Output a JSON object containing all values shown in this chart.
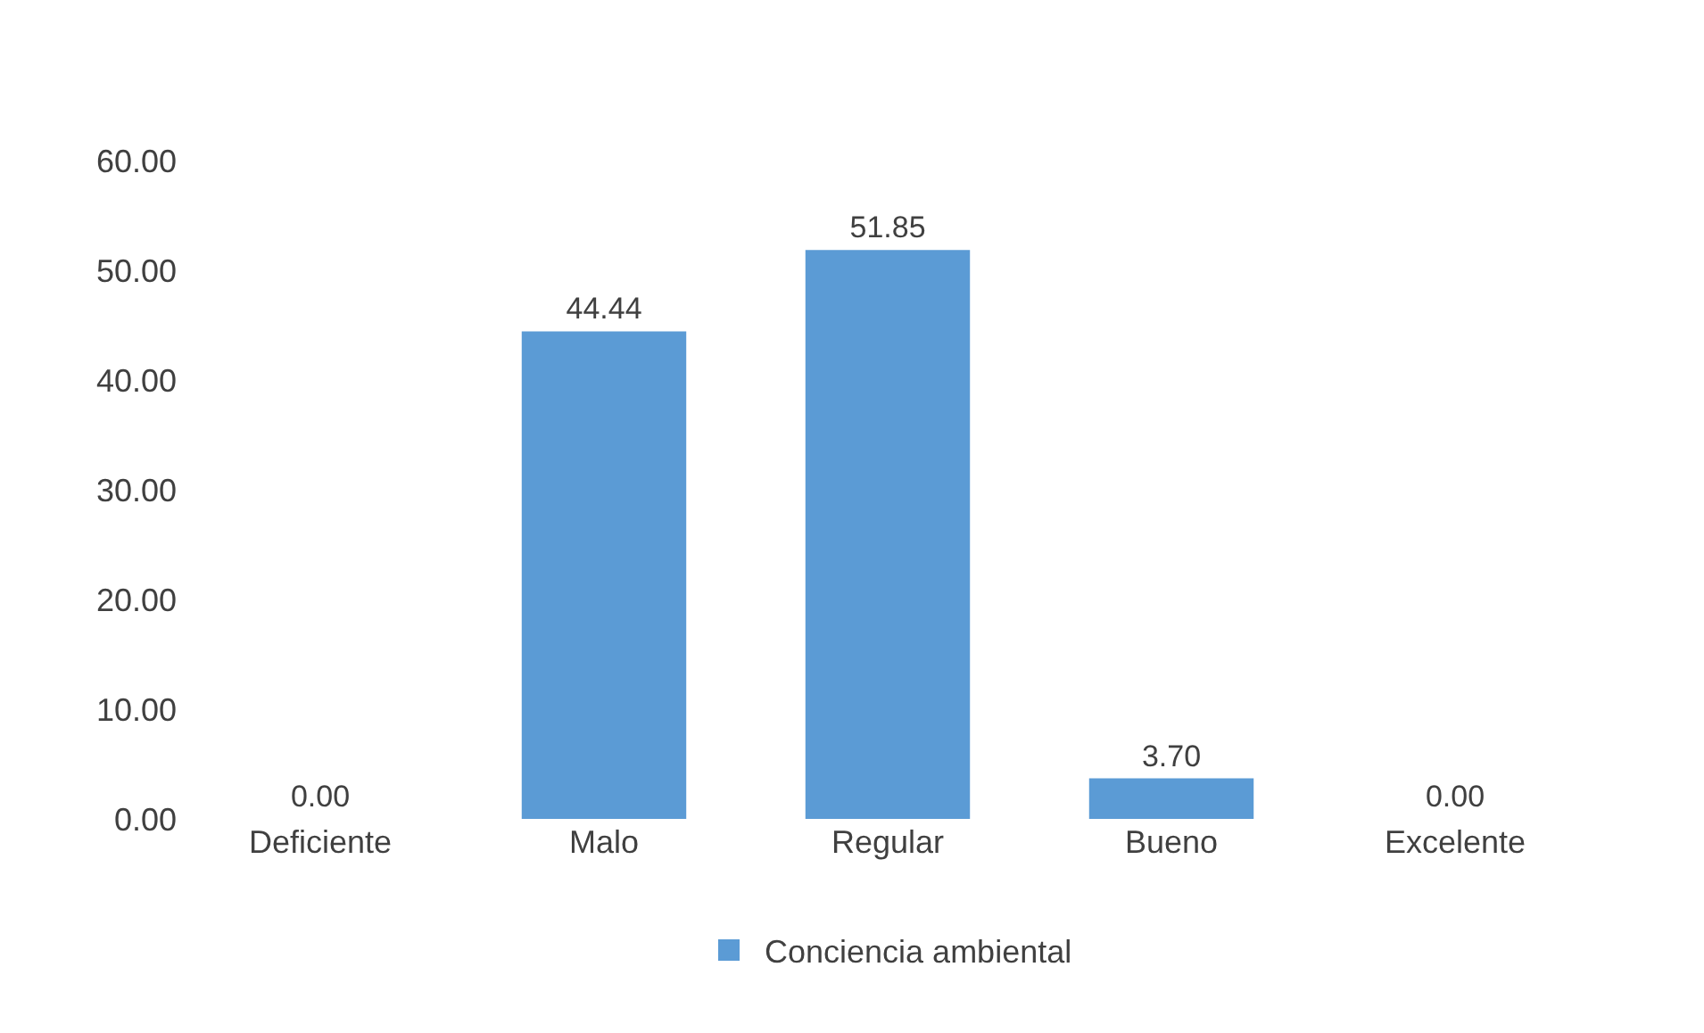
{
  "chart_data": {
    "type": "bar",
    "categories": [
      "Deficiente",
      "Malo",
      "Regular",
      "Bueno",
      "Excelente"
    ],
    "series": [
      {
        "name": "Conciencia ambiental",
        "color": "#5b9bd5",
        "values": [
          0,
          44.44,
          51.85,
          3.7,
          0
        ],
        "value_labels": [
          "0.00",
          "44.44",
          "51.85",
          "3.70",
          "0.00"
        ]
      }
    ],
    "ylim": [
      0,
      60
    ],
    "yticks": [
      {
        "value": 0,
        "label": "0.00"
      },
      {
        "value": 10,
        "label": "10.00"
      },
      {
        "value": 20,
        "label": "20.00"
      },
      {
        "value": 30,
        "label": "30.00"
      },
      {
        "value": 40,
        "label": "40.00"
      },
      {
        "value": 50,
        "label": "50.00"
      },
      {
        "value": 60,
        "label": "60.00"
      }
    ],
    "grid": false,
    "legend": "bottom"
  }
}
